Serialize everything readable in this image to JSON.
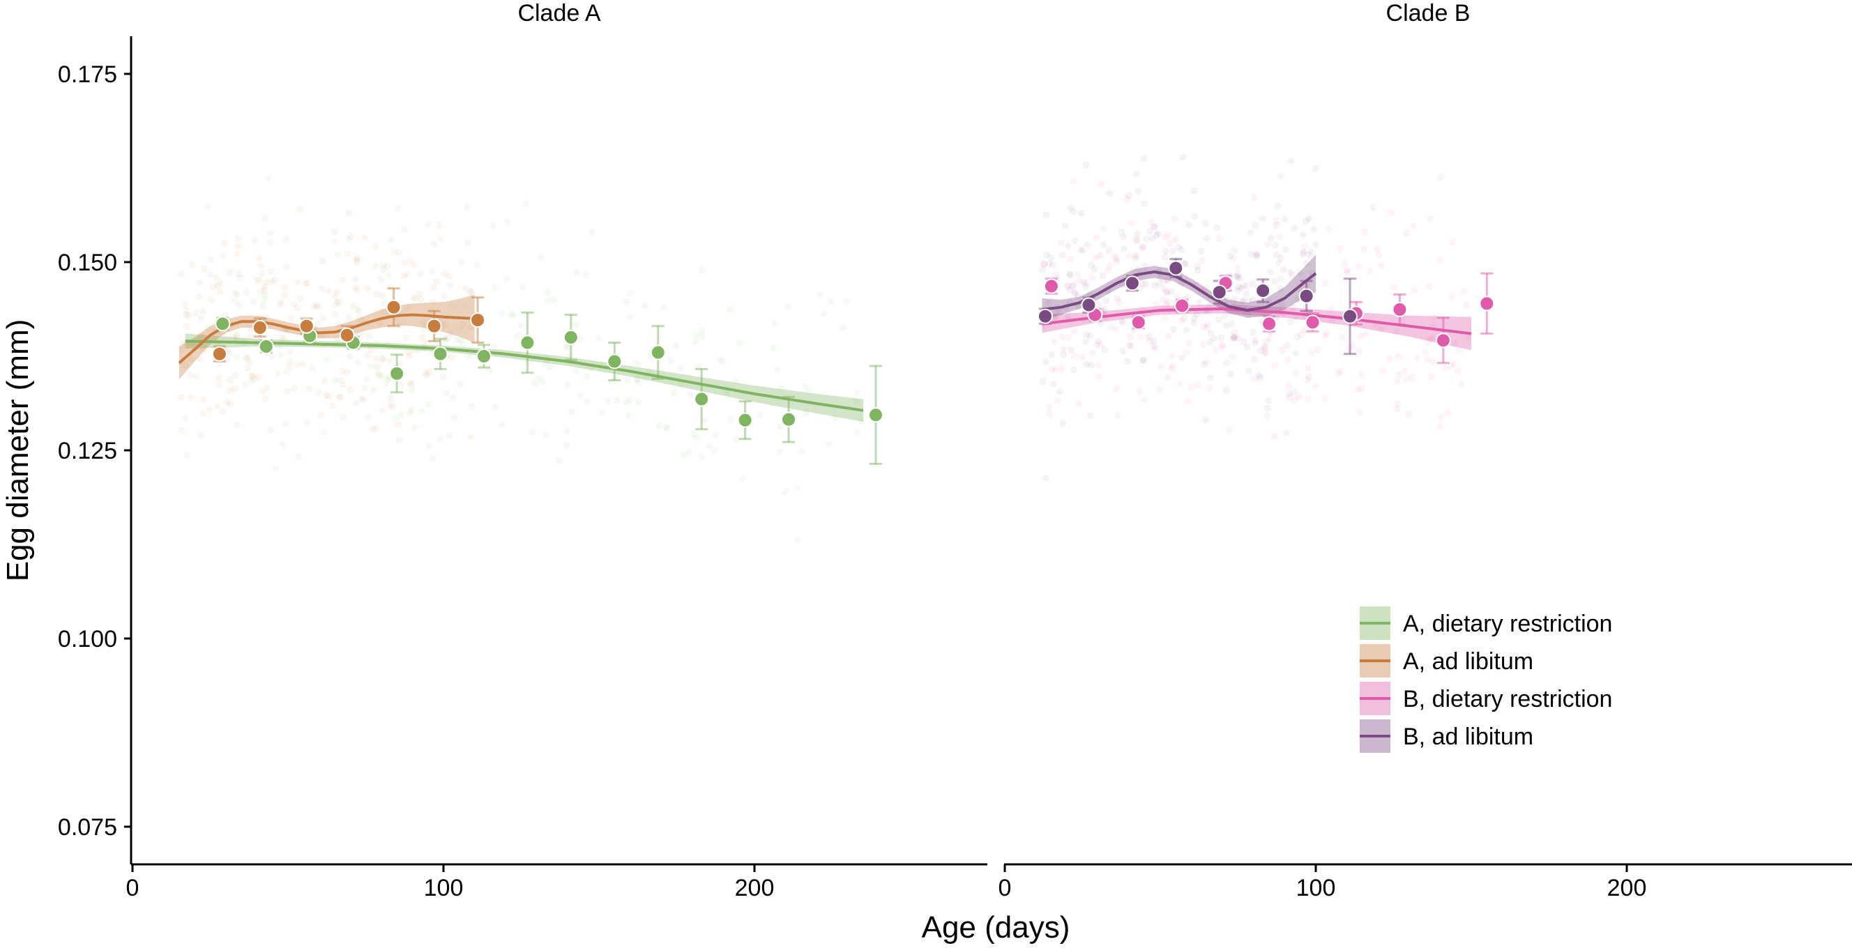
{
  "chart_data": {
    "type": "scatter",
    "ylabel": "Egg diameter (mm)",
    "xlabel": "Age (days)",
    "ylim": [
      0.07,
      0.18
    ],
    "xlim": [
      0,
      275
    ],
    "yticks": [
      0.075,
      0.1,
      0.125,
      0.15,
      0.175
    ],
    "ytick_labels": [
      "0.075",
      "0.100",
      "0.125",
      "0.150",
      "0.175"
    ],
    "xticks": [
      0,
      100,
      200
    ],
    "xtick_labels": [
      "0",
      "100",
      "200"
    ],
    "legend": {
      "position": "bottom-right of Clade B panel",
      "entries": [
        {
          "label": "A, dietary restriction",
          "color": "#7fb461"
        },
        {
          "label": "A, ad libitum",
          "color": "#c87d3e"
        },
        {
          "label": "B, dietary restriction",
          "color": "#e05aaa"
        },
        {
          "label": "B, ad libitum",
          "color": "#7a4a82"
        }
      ]
    },
    "panels": [
      {
        "title": "Clade A",
        "series": [
          {
            "name": "A, dietary restriction",
            "color": "#7fb461",
            "points": [
              {
                "x": 29,
                "y": 0.1418,
                "err": 0.0008
              },
              {
                "x": 43,
                "y": 0.1388,
                "err": 0.0008
              },
              {
                "x": 57,
                "y": 0.1402,
                "err": 0.0008
              },
              {
                "x": 71,
                "y": 0.1393,
                "err": 0.0008
              },
              {
                "x": 85,
                "y": 0.1352,
                "err": 0.0025
              },
              {
                "x": 99,
                "y": 0.1378,
                "err": 0.002
              },
              {
                "x": 113,
                "y": 0.1375,
                "err": 0.0015
              },
              {
                "x": 127,
                "y": 0.1393,
                "err": 0.004
              },
              {
                "x": 141,
                "y": 0.14,
                "err": 0.003
              },
              {
                "x": 155,
                "y": 0.1368,
                "err": 0.0025
              },
              {
                "x": 169,
                "y": 0.138,
                "err": 0.0035
              },
              {
                "x": 183,
                "y": 0.1318,
                "err": 0.004
              },
              {
                "x": 197,
                "y": 0.129,
                "err": 0.0025
              },
              {
                "x": 211,
                "y": 0.1291,
                "err": 0.003
              },
              {
                "x": 239,
                "y": 0.1297,
                "err": 0.0065
              }
            ],
            "trend": {
              "x": [
                17,
                40,
                60,
                80,
                100,
                120,
                140,
                160,
                180,
                200,
                220,
                235
              ],
              "y": [
                0.1395,
                0.1393,
                0.1391,
                0.1389,
                0.1385,
                0.1378,
                0.1368,
                0.1355,
                0.134,
                0.1325,
                0.1312,
                0.1303
              ],
              "ci": [
                0.001,
                0.0005,
                0.0004,
                0.0004,
                0.0004,
                0.0005,
                0.0006,
                0.0007,
                0.0009,
                0.0011,
                0.0013,
                0.0015
              ]
            }
          },
          {
            "name": "A, ad libitum",
            "color": "#c87d3e",
            "points": [
              {
                "x": 28,
                "y": 0.1378,
                "err": 0.001
              },
              {
                "x": 41,
                "y": 0.1413,
                "err": 0.0012
              },
              {
                "x": 56,
                "y": 0.1415,
                "err": 0.001
              },
              {
                "x": 69,
                "y": 0.1403,
                "err": 0.0012
              },
              {
                "x": 84,
                "y": 0.144,
                "err": 0.0025
              },
              {
                "x": 97,
                "y": 0.1415,
                "err": 0.002
              },
              {
                "x": 111,
                "y": 0.1423,
                "err": 0.003
              }
            ],
            "trend": {
              "x": [
                15,
                20,
                25,
                30,
                35,
                40,
                45,
                50,
                55,
                60,
                65,
                70,
                75,
                80,
                85,
                90,
                95,
                100,
                105,
                110
              ],
              "y": [
                0.1366,
                0.1384,
                0.1403,
                0.1415,
                0.1421,
                0.1421,
                0.1418,
                0.1413,
                0.1409,
                0.1406,
                0.1407,
                0.1412,
                0.1419,
                0.1425,
                0.1429,
                0.143,
                0.1429,
                0.1427,
                0.1426,
                0.1425
              ],
              "ci": [
                0.0022,
                0.0016,
                0.0012,
                0.0009,
                0.0008,
                0.0008,
                0.0007,
                0.0007,
                0.0007,
                0.0007,
                0.0008,
                0.0009,
                0.001,
                0.0012,
                0.0013,
                0.0015,
                0.0017,
                0.002,
                0.0025,
                0.0032
              ]
            }
          }
        ]
      },
      {
        "title": "Clade B",
        "series": [
          {
            "name": "B, dietary restriction",
            "color": "#e05aaa",
            "points": [
              {
                "x": 15,
                "y": 0.1468,
                "err": 0.001
              },
              {
                "x": 29,
                "y": 0.143,
                "err": 0.0008
              },
              {
                "x": 43,
                "y": 0.142,
                "err": 0.0008
              },
              {
                "x": 57,
                "y": 0.1442,
                "err": 0.0008
              },
              {
                "x": 71,
                "y": 0.1472,
                "err": 0.001
              },
              {
                "x": 85,
                "y": 0.1418,
                "err": 0.001
              },
              {
                "x": 99,
                "y": 0.142,
                "err": 0.0012
              },
              {
                "x": 113,
                "y": 0.1432,
                "err": 0.0015
              },
              {
                "x": 127,
                "y": 0.1437,
                "err": 0.002
              },
              {
                "x": 141,
                "y": 0.1396,
                "err": 0.003
              },
              {
                "x": 155,
                "y": 0.1445,
                "err": 0.004
              }
            ],
            "trend": {
              "x": [
                12,
                30,
                50,
                70,
                90,
                110,
                130,
                150
              ],
              "y": [
                0.1418,
                0.1427,
                0.1436,
                0.1438,
                0.1433,
                0.1425,
                0.1415,
                0.1405
              ],
              "ci": [
                0.0012,
                0.0007,
                0.0006,
                0.0006,
                0.0007,
                0.0009,
                0.0014,
                0.0022
              ]
            }
          },
          {
            "name": "B, ad libitum",
            "color": "#7a4a82",
            "points": [
              {
                "x": 13,
                "y": 0.1428,
                "err": 0.001
              },
              {
                "x": 27,
                "y": 0.1443,
                "err": 0.001
              },
              {
                "x": 41,
                "y": 0.1472,
                "err": 0.001
              },
              {
                "x": 55,
                "y": 0.1492,
                "err": 0.0012
              },
              {
                "x": 69,
                "y": 0.146,
                "err": 0.0015
              },
              {
                "x": 83,
                "y": 0.1462,
                "err": 0.0015
              },
              {
                "x": 97,
                "y": 0.1455,
                "err": 0.002
              },
              {
                "x": 111,
                "y": 0.1428,
                "err": 0.005
              }
            ],
            "trend": {
              "x": [
                12,
                18,
                24,
                30,
                36,
                42,
                48,
                54,
                60,
                66,
                72,
                78,
                84,
                90,
                96,
                100
              ],
              "y": [
                0.1437,
                0.144,
                0.1446,
                0.1458,
                0.1472,
                0.1483,
                0.1487,
                0.1483,
                0.147,
                0.1454,
                0.1441,
                0.1436,
                0.144,
                0.1452,
                0.1472,
                0.1485
              ],
              "ci": [
                0.0015,
                0.001,
                0.0008,
                0.0008,
                0.0008,
                0.0008,
                0.0008,
                0.0008,
                0.0008,
                0.0008,
                0.0009,
                0.001,
                0.0012,
                0.0015,
                0.002,
                0.0025
              ]
            }
          }
        ]
      }
    ]
  }
}
